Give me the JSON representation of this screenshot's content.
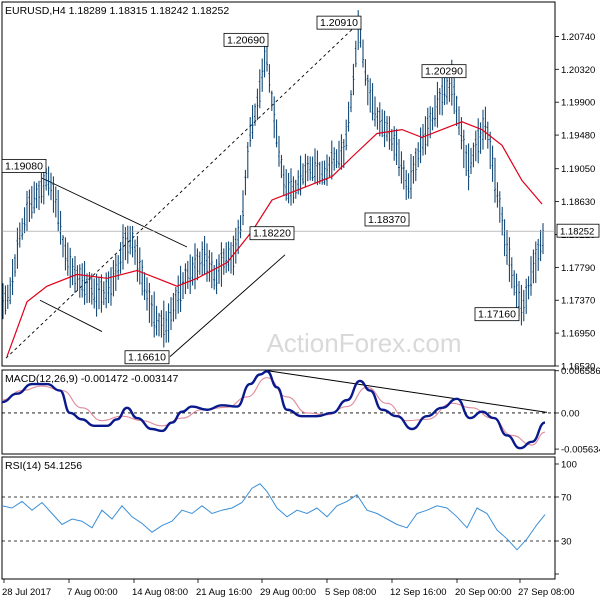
{
  "chart_data": [
    {
      "type": "candlestick",
      "title": "EURUSD,H4  1.18289 1.18315 1.18242 1.18252",
      "ylim": [
        1.1653,
        1.2118
      ],
      "yticks": [
        "1.20740",
        "1.20320",
        "1.19900",
        "1.19480",
        "1.19050",
        "1.18630",
        "1.18210",
        "1.17790",
        "1.17370",
        "1.16950",
        "1.16530"
      ],
      "current_price": "1.18252",
      "watermark": "ActionForex.com",
      "price_path": [
        [
          0,
          1.173
        ],
        [
          8,
          1.1745
        ],
        [
          18,
          1.182
        ],
        [
          28,
          1.186
        ],
        [
          38,
          1.1875
        ],
        [
          45,
          1.1895
        ],
        [
          55,
          1.186
        ],
        [
          62,
          1.18
        ],
        [
          72,
          1.177
        ],
        [
          82,
          1.176
        ],
        [
          95,
          1.1745
        ],
        [
          105,
          1.175
        ],
        [
          115,
          1.1775
        ],
        [
          122,
          1.181
        ],
        [
          130,
          1.1815
        ],
        [
          138,
          1.178
        ],
        [
          146,
          1.174
        ],
        [
          155,
          1.171
        ],
        [
          165,
          1.1705
        ],
        [
          173,
          1.1735
        ],
        [
          183,
          1.1765
        ],
        [
          193,
          1.178
        ],
        [
          203,
          1.1795
        ],
        [
          213,
          1.1765
        ],
        [
          222,
          1.179
        ],
        [
          232,
          1.1795
        ],
        [
          240,
          1.184
        ],
        [
          248,
          1.195
        ],
        [
          256,
          1.199
        ],
        [
          264,
          1.2055
        ],
        [
          272,
          1.197
        ],
        [
          282,
          1.1885
        ],
        [
          292,
          1.1875
        ],
        [
          302,
          1.19
        ],
        [
          312,
          1.1905
        ],
        [
          322,
          1.1895
        ],
        [
          332,
          1.1915
        ],
        [
          342,
          1.1925
        ],
        [
          350,
          1.2
        ],
        [
          357,
          1.209
        ],
        [
          365,
          1.201
        ],
        [
          375,
          1.197
        ],
        [
          385,
          1.1955
        ],
        [
          395,
          1.193
        ],
        [
          405,
          1.188
        ],
        [
          412,
          1.1905
        ],
        [
          420,
          1.194
        ],
        [
          430,
          1.197
        ],
        [
          440,
          1.2
        ],
        [
          450,
          1.2015
        ],
        [
          458,
          1.196
        ],
        [
          466,
          1.1905
        ],
        [
          474,
          1.1935
        ],
        [
          484,
          1.1965
        ],
        [
          492,
          1.19
        ],
        [
          500,
          1.184
        ],
        [
          508,
          1.1785
        ],
        [
          515,
          1.1745
        ],
        [
          522,
          1.173
        ],
        [
          530,
          1.1775
        ],
        [
          537,
          1.18
        ],
        [
          543,
          1.1825
        ]
      ],
      "moving_average": [
        [
          5,
          1.1665
        ],
        [
          25,
          1.1735
        ],
        [
          45,
          1.1755
        ],
        [
          75,
          1.177
        ],
        [
          105,
          1.1765
        ],
        [
          135,
          1.1775
        ],
        [
          155,
          1.1765
        ],
        [
          175,
          1.1755
        ],
        [
          195,
          1.1765
        ],
        [
          225,
          1.1785
        ],
        [
          250,
          1.1825
        ],
        [
          270,
          1.1865
        ],
        [
          300,
          1.188
        ],
        [
          330,
          1.1895
        ],
        [
          350,
          1.192
        ],
        [
          375,
          1.195
        ],
        [
          400,
          1.1955
        ],
        [
          420,
          1.1945
        ],
        [
          440,
          1.1955
        ],
        [
          460,
          1.1965
        ],
        [
          480,
          1.1955
        ],
        [
          500,
          1.1935
        ],
        [
          520,
          1.189
        ],
        [
          540,
          1.186
        ]
      ],
      "price_labels": [
        {
          "text": "1.19080",
          "x": 18,
          "y": 1.1908
        },
        {
          "text": "1.20690",
          "x": 264,
          "y": 1.2069
        },
        {
          "text": "1.20910",
          "x": 357,
          "y": 1.2091
        },
        {
          "text": "1.20290",
          "x": 462,
          "y": 1.2029
        },
        {
          "text": "1.18370",
          "x": 405,
          "y": 1.1837
        },
        {
          "text": "1.18220",
          "x": 290,
          "y": 1.1822
        },
        {
          "text": "1.17160",
          "x": 515,
          "y": 1.1716
        },
        {
          "text": "1.16610",
          "x": 165,
          "y": 1.1661
        }
      ],
      "trendlines": [
        [
          [
            40,
            1.1893
          ],
          [
            185,
            1.1805
          ]
        ],
        [
          [
            38,
            1.1737
          ],
          [
            100,
            1.1697
          ]
        ],
        [
          [
            168,
            1.1665
          ],
          [
            283,
            1.1795
          ]
        ],
        [
          [
            4,
            1.1663
          ],
          [
            360,
            1.2095
          ]
        ]
      ]
    },
    {
      "type": "line",
      "title": "MACD(12,26,9) -0.001472 -0.003147",
      "ylim": [
        -0.0064,
        0.0067
      ],
      "yticks": [
        "0.006586",
        "0.00",
        "-0.005634"
      ],
      "macd": [
        [
          0,
          0.0017
        ],
        [
          15,
          0.003
        ],
        [
          30,
          0.0045
        ],
        [
          45,
          0.0045
        ],
        [
          58,
          0.0035
        ],
        [
          68,
          0.0
        ],
        [
          80,
          -0.001
        ],
        [
          92,
          -0.002
        ],
        [
          105,
          -0.002
        ],
        [
          115,
          -0.001
        ],
        [
          125,
          0.0008
        ],
        [
          135,
          -0.0008
        ],
        [
          150,
          -0.0025
        ],
        [
          160,
          -0.0028
        ],
        [
          170,
          -0.0015
        ],
        [
          180,
          0.0002
        ],
        [
          190,
          0.001
        ],
        [
          205,
          0.0005
        ],
        [
          220,
          0.0012
        ],
        [
          235,
          0.001
        ],
        [
          248,
          0.0045
        ],
        [
          258,
          0.006
        ],
        [
          265,
          0.0065
        ],
        [
          275,
          0.004
        ],
        [
          285,
          0.0005
        ],
        [
          300,
          -0.0005
        ],
        [
          315,
          -0.0005
        ],
        [
          330,
          0.0
        ],
        [
          345,
          0.002
        ],
        [
          358,
          0.005
        ],
        [
          368,
          0.0035
        ],
        [
          380,
          0.0005
        ],
        [
          395,
          -0.0005
        ],
        [
          410,
          -0.0025
        ],
        [
          425,
          -0.0005
        ],
        [
          440,
          0.0008
        ],
        [
          455,
          0.0022
        ],
        [
          468,
          -0.0008
        ],
        [
          480,
          0.0002
        ],
        [
          492,
          -0.0008
        ],
        [
          505,
          -0.0035
        ],
        [
          518,
          -0.0055
        ],
        [
          530,
          -0.0045
        ],
        [
          543,
          -0.0015
        ]
      ],
      "signal": [
        [
          0,
          0.002
        ],
        [
          20,
          0.0035
        ],
        [
          40,
          0.0042
        ],
        [
          60,
          0.0035
        ],
        [
          80,
          0.0008
        ],
        [
          100,
          -0.0012
        ],
        [
          120,
          -0.0005
        ],
        [
          140,
          -0.0012
        ],
        [
          160,
          -0.002
        ],
        [
          180,
          -0.0008
        ],
        [
          200,
          0.0005
        ],
        [
          225,
          0.0009
        ],
        [
          245,
          0.0025
        ],
        [
          265,
          0.0055
        ],
        [
          285,
          0.0025
        ],
        [
          305,
          0.0
        ],
        [
          325,
          -0.0003
        ],
        [
          345,
          0.001
        ],
        [
          365,
          0.004
        ],
        [
          385,
          0.0015
        ],
        [
          405,
          -0.0012
        ],
        [
          425,
          -0.001
        ],
        [
          450,
          0.0015
        ],
        [
          470,
          0.0008
        ],
        [
          490,
          -0.0008
        ],
        [
          510,
          -0.0035
        ],
        [
          530,
          -0.005
        ],
        [
          543,
          -0.003
        ]
      ],
      "trendline": [
        [
          265,
          0.0066
        ],
        [
          545,
          0.0001
        ]
      ]
    },
    {
      "type": "line",
      "title": "RSI(14) 54.1256",
      "ylim": [
        0,
        100
      ],
      "yticks": [
        "100",
        "70",
        "30",
        "0"
      ],
      "rsi": [
        [
          0,
          62
        ],
        [
          10,
          60
        ],
        [
          20,
          66
        ],
        [
          30,
          58
        ],
        [
          40,
          65
        ],
        [
          50,
          55
        ],
        [
          60,
          45
        ],
        [
          70,
          50
        ],
        [
          80,
          48
        ],
        [
          90,
          42
        ],
        [
          100,
          58
        ],
        [
          110,
          50
        ],
        [
          120,
          62
        ],
        [
          130,
          52
        ],
        [
          140,
          46
        ],
        [
          150,
          38
        ],
        [
          160,
          44
        ],
        [
          170,
          48
        ],
        [
          180,
          58
        ],
        [
          190,
          55
        ],
        [
          200,
          62
        ],
        [
          210,
          55
        ],
        [
          220,
          58
        ],
        [
          230,
          60
        ],
        [
          240,
          65
        ],
        [
          250,
          78
        ],
        [
          258,
          82
        ],
        [
          265,
          75
        ],
        [
          275,
          60
        ],
        [
          285,
          52
        ],
        [
          295,
          58
        ],
        [
          305,
          55
        ],
        [
          315,
          60
        ],
        [
          325,
          52
        ],
        [
          335,
          62
        ],
        [
          345,
          66
        ],
        [
          355,
          72
        ],
        [
          365,
          58
        ],
        [
          375,
          55
        ],
        [
          385,
          50
        ],
        [
          395,
          45
        ],
        [
          405,
          42
        ],
        [
          415,
          55
        ],
        [
          425,
          58
        ],
        [
          435,
          62
        ],
        [
          445,
          60
        ],
        [
          455,
          52
        ],
        [
          465,
          42
        ],
        [
          475,
          60
        ],
        [
          485,
          55
        ],
        [
          495,
          40
        ],
        [
          505,
          32
        ],
        [
          515,
          22
        ],
        [
          525,
          32
        ],
        [
          535,
          45
        ],
        [
          543,
          54
        ]
      ]
    }
  ],
  "x_axis": {
    "ticks": [
      "28 Jul 2017",
      "7 Aug 00:00",
      "14 Aug 08:00",
      "21 Aug 16:00",
      "29 Aug 00:00",
      "5 Sep 08:00",
      "12 Sep 16:00",
      "20 Sep 00:00",
      "27 Sep 08:00"
    ]
  }
}
